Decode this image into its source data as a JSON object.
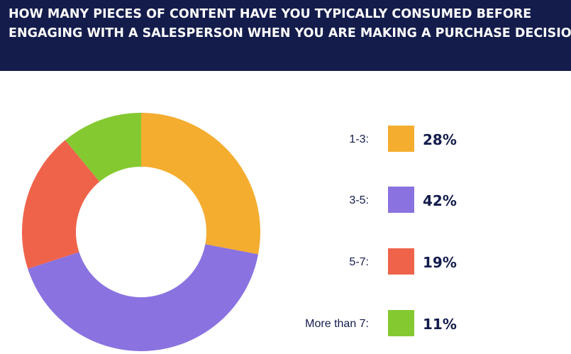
{
  "header": {
    "line1": "HOW MANY PIECES OF CONTENT HAVE YOU TYPICALLY CONSUMED BEFORE",
    "line2": "ENGAGING WITH A SALESPERSON WHEN YOU ARE MAKING A PURCHASE DECISION?",
    "background": "#141c4c"
  },
  "chart_data": {
    "type": "pie",
    "donut": true,
    "title": "HOW MANY PIECES OF CONTENT HAVE YOU TYPICALLY CONSUMED BEFORE ENGAGING WITH A SALESPERSON WHEN YOU ARE MAKING A PURCHASE DECISION?",
    "categories": [
      "1-3:",
      "3-5:",
      "5-7:",
      "More than 7:"
    ],
    "values": [
      28,
      42,
      19,
      11
    ],
    "value_labels": [
      "28%",
      "42%",
      "19%",
      "11%"
    ],
    "colors": [
      "#f4ad2f",
      "#8a72e0",
      "#ef634b",
      "#85c931"
    ],
    "legend": "right"
  }
}
